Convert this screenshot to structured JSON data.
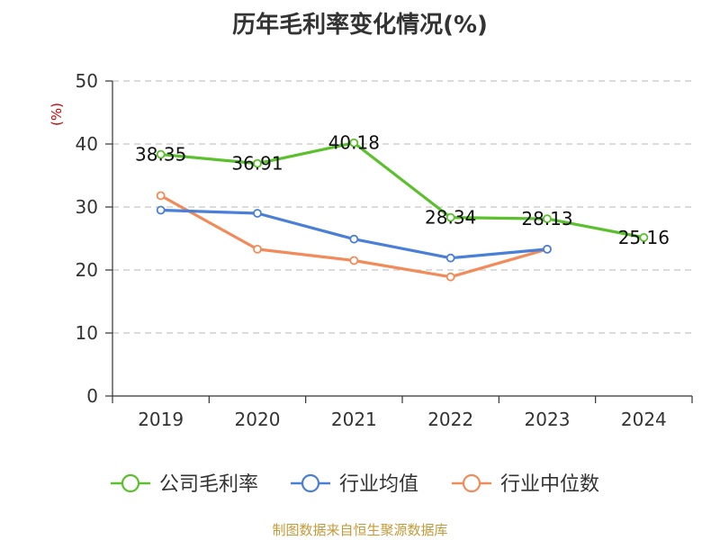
{
  "chart_data": {
    "type": "line",
    "title": "历年毛利率变化情况(%)",
    "ylabel": "(%)",
    "ylabel_color": "#cc0000",
    "categories": [
      "2019",
      "2020",
      "2021",
      "2022",
      "2023",
      "2024"
    ],
    "ylim": [
      0,
      50
    ],
    "yticks": [
      0,
      10,
      20,
      30,
      40,
      50
    ],
    "grid": true,
    "legend_position": "bottom",
    "series": [
      {
        "name": "公司毛利率",
        "color": "#5ac02c",
        "values": [
          38.35,
          36.91,
          40.18,
          28.34,
          28.13,
          25.16
        ],
        "labels": [
          "38.35",
          "36.91",
          "40.18",
          "28.34",
          "28.13",
          "25.16"
        ]
      },
      {
        "name": "行业均值",
        "color": "#4a7fd8",
        "values": [
          29.5,
          29.0,
          24.9,
          21.9,
          23.3,
          null
        ]
      },
      {
        "name": "行业中位数",
        "color": "#f28b5a",
        "values": [
          31.8,
          23.3,
          21.5,
          18.9,
          23.3,
          null
        ]
      }
    ]
  },
  "source": {
    "text": "制图数据来自恒生聚源数据库",
    "color": "#c49a3a"
  }
}
